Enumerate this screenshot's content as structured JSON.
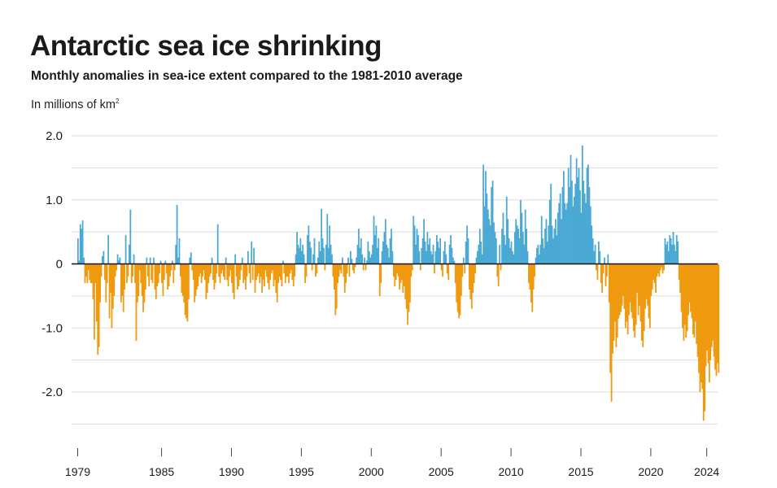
{
  "title": "Antarctic sea ice shrinking",
  "subtitle": "Monthly anomalies in sea-ice extent compared to the 1981-2010 average",
  "unit_text": "In millions of km",
  "unit_sup": "2",
  "colors": {
    "positive": "#4ba9d4",
    "negative": "#ef9a0f",
    "grid": "#dddddd",
    "zero": "#111111",
    "text": "#1a1a1a"
  },
  "chart_data": {
    "type": "bar",
    "title": "Antarctic sea ice shrinking",
    "subtitle": "Monthly anomalies in sea-ice extent compared to the 1981-2010 average",
    "ylabel": "In millions of km²",
    "ylim": [
      -2.8,
      2.0
    ],
    "yticks": [
      2.0,
      1.0,
      0,
      -1.0,
      -2.0
    ],
    "ytick_labels": [
      "2.0",
      "1.0",
      "0",
      "-1.0",
      "-2.0"
    ],
    "xticks": [
      1979,
      1985,
      1990,
      1995,
      2000,
      2005,
      2010,
      2015,
      2020,
      2024
    ],
    "xlim": [
      1979,
      2024.75
    ],
    "grid": true,
    "x_resolution": "monthly",
    "series": [
      {
        "yearly_values": {
          "1979": [
            0.4,
            0.05,
            0.62,
            0.55,
            0.68,
            0.1,
            -0.3,
            -0.2,
            -0.3,
            -0.1,
            -0.25,
            -0.3
          ],
          "1980": [
            -0.3,
            -0.55,
            -1.18,
            -0.3,
            -0.9,
            -1.42,
            -1.3,
            -0.6,
            -0.2,
            0.12,
            0.2,
            -0.25
          ],
          "1981": [
            -0.6,
            -0.3,
            0.45,
            -0.85,
            -0.45,
            -1.0,
            -0.7,
            -0.5,
            -0.2,
            -0.1,
            0.15,
            0.06
          ],
          "1982": [
            0.1,
            -0.6,
            -0.5,
            -0.75,
            -0.4,
            0.45,
            -0.3,
            -0.2,
            0.3,
            0.85,
            -0.3,
            -0.2
          ],
          "1983": [
            0.15,
            -0.3,
            -1.2,
            -0.6,
            -0.5,
            -0.1,
            -0.3,
            -0.5,
            -0.75,
            -0.6,
            -0.4,
            0.1
          ],
          "1984": [
            -0.2,
            -0.35,
            0.1,
            -0.25,
            -0.3,
            0.1,
            -0.4,
            -0.55,
            -0.35,
            -0.3,
            -0.15,
            0.05
          ],
          "1985": [
            -0.3,
            -0.5,
            -0.25,
            0.05,
            -0.15,
            -0.4,
            -0.35,
            -0.2,
            -0.1,
            0.05,
            -0.3,
            -0.1
          ],
          "1986": [
            0.3,
            0.92,
            0.1,
            0.4,
            -0.2,
            -0.45,
            -0.5,
            -0.6,
            -0.8,
            -0.85,
            -0.9,
            -0.55
          ],
          "1987": [
            0.1,
            0.18,
            -0.1,
            -0.25,
            -0.6,
            -0.5,
            -0.4,
            -0.35,
            -0.2,
            -0.15,
            -0.3,
            -0.2
          ],
          "1988": [
            -0.1,
            -0.25,
            -0.55,
            -0.45,
            -0.3,
            -0.2,
            -0.15,
            0.1,
            -0.25,
            -0.4,
            -0.3,
            -0.15
          ],
          "1989": [
            0.62,
            -0.2,
            -0.3,
            -0.15,
            -0.1,
            -0.2,
            -0.25,
            0.1,
            -0.25,
            -0.35,
            -0.2,
            -0.1
          ],
          "1990": [
            -0.3,
            -0.45,
            -0.55,
            0.15,
            -0.2,
            -0.4,
            -0.35,
            -0.25,
            -0.1,
            0.1,
            -0.3,
            -0.25
          ],
          "1991": [
            -0.4,
            -0.2,
            0.2,
            -0.15,
            -0.3,
            0.35,
            -0.25,
            0.25,
            -0.45,
            -0.25,
            -0.2,
            -0.15
          ],
          "1992": [
            -0.3,
            -0.2,
            -0.45,
            -0.25,
            -0.35,
            -0.1,
            -0.2,
            -0.3,
            -0.4,
            -0.25,
            -0.15,
            -0.1
          ],
          "1993": [
            -0.35,
            -0.25,
            -0.45,
            -0.6,
            -0.3,
            -0.2,
            -0.25,
            -0.35,
            0.05,
            -0.15,
            -0.3,
            -0.2
          ],
          "1994": [
            -0.2,
            -0.3,
            -0.15,
            -0.1,
            -0.25,
            -0.35,
            -0.2,
            0.15,
            0.5,
            0.3,
            0.25,
            0.4
          ],
          "1995": [
            0.2,
            0.3,
            0.15,
            -0.3,
            -0.2,
            0.45,
            0.6,
            0.35,
            0.25,
            -0.1,
            0.15,
            0.4
          ],
          "1996": [
            -0.2,
            -0.15,
            0.1,
            0.35,
            0.2,
            0.86,
            0.4,
            0.25,
            -0.1,
            0.3,
            0.78,
            0.25
          ],
          "1997": [
            0.6,
            0.3,
            0.15,
            -0.2,
            -0.4,
            -0.8,
            -0.7,
            -0.3,
            -0.2,
            -0.1,
            -0.15,
            0.1
          ],
          "1998": [
            -0.2,
            -0.45,
            -0.3,
            -0.15,
            0.1,
            -0.2,
            0.2,
            0.08,
            -0.1,
            -0.15,
            -0.05,
            0.1
          ],
          "1999": [
            0.3,
            0.55,
            0.25,
            0.4,
            0.15,
            -0.1,
            0.1,
            -0.1,
            0.05,
            0.35,
            0.2,
            0.1
          ],
          "2000": [
            0.15,
            0.3,
            0.75,
            0.45,
            0.6,
            0.25,
            0.4,
            -0.5,
            -0.3,
            0.2,
            0.35,
            0.5
          ],
          "2001": [
            0.7,
            0.3,
            0.25,
            0.1,
            0.4,
            0.55,
            0.2,
            -0.2,
            -0.35,
            -0.25,
            -0.15,
            -0.2
          ],
          "2002": [
            -0.4,
            -0.3,
            -0.25,
            -0.45,
            -0.35,
            -0.55,
            -0.7,
            -0.95,
            -0.75,
            -0.6,
            -0.2,
            -0.1
          ],
          "2003": [
            0.75,
            0.6,
            0.3,
            0.55,
            0.45,
            0.2,
            -0.1,
            0.25,
            0.4,
            0.7,
            0.35,
            0.2
          ],
          "2004": [
            0.5,
            0.3,
            0.4,
            0.2,
            0.15,
            0.3,
            -0.15,
            0.2,
            0.45,
            0.35,
            0.25,
            0.4
          ],
          "2005": [
            -0.1,
            -0.2,
            0.2,
            0.35,
            0.15,
            -0.15,
            -0.25,
            0.3,
            0.45,
            0.25,
            0.1,
            0.05
          ],
          "2006": [
            -0.3,
            -0.6,
            -0.75,
            -0.85,
            -0.8,
            -0.5,
            -0.2,
            0.1,
            -0.15,
            0.35,
            0.6,
            0.4
          ],
          "2007": [
            -0.4,
            -0.55,
            -0.7,
            -0.45,
            -0.3,
            -0.15,
            0.1,
            0.2,
            0.3,
            0.55,
            0.35,
            0.15
          ],
          "2008": [
            1.55,
            0.9,
            1.45,
            1.1,
            0.85,
            0.7,
            0.6,
            1.2,
            1.3,
            0.65,
            0.5,
            0.4
          ],
          "2009": [
            -0.2,
            -0.35,
            0.3,
            -0.1,
            0.55,
            0.8,
            0.45,
            0.3,
            1.05,
            0.7,
            0.4,
            0.25
          ],
          "2010": [
            0.35,
            0.2,
            0.15,
            0.5,
            0.7,
            0.6,
            0.55,
            0.4,
            1.0,
            0.8,
            0.5,
            0.3
          ],
          "2011": [
            0.85,
            0.55,
            0.2,
            -0.3,
            -0.4,
            -0.6,
            -0.75,
            -0.4,
            -0.2,
            0.1,
            0.25,
            0.3
          ],
          "2012": [
            0.15,
            0.3,
            0.75,
            0.4,
            0.25,
            0.55,
            0.7,
            0.35,
            0.6,
            1.0,
            1.25,
            0.6
          ],
          "2013": [
            0.4,
            0.55,
            0.7,
            0.45,
            0.8,
            0.95,
            1.1,
            0.7,
            1.2,
            1.45,
            0.95,
            0.85
          ],
          "2014": [
            0.95,
            1.5,
            1.2,
            1.7,
            1.3,
            0.9,
            1.05,
            1.25,
            1.65,
            1.35,
            1.5,
            1.15
          ],
          "2015": [
            0.8,
            1.85,
            1.3,
            1.1,
            0.95,
            1.5,
            1.55,
            1.2,
            0.9,
            0.6,
            0.4,
            0.2
          ],
          "2016": [
            0.3,
            -0.1,
            -0.25,
            0.35,
            0.2,
            -0.3,
            -0.45,
            -0.15,
            0.1,
            -0.35,
            -0.2,
            0.15
          ],
          "2017": [
            -0.6,
            -1.7,
            -2.15,
            -1.4,
            -1.2,
            -0.9,
            -1.3,
            -1.15,
            -0.85,
            -0.8,
            -0.75,
            -0.65
          ],
          "2018": [
            -0.5,
            -0.7,
            -1.0,
            -0.9,
            -1.1,
            -0.8,
            -0.6,
            -0.75,
            -0.85,
            -1.05,
            -1.15,
            -0.95
          ],
          "2019": [
            -0.45,
            -0.8,
            -0.65,
            -0.9,
            -1.2,
            -1.3,
            -1.05,
            -0.7,
            -0.55,
            -0.65,
            -0.85,
            -1.0
          ],
          "2020": [
            -0.5,
            -0.4,
            -0.25,
            -0.3,
            -0.45,
            -0.2,
            -0.15,
            -0.2,
            -0.1,
            -0.05,
            -0.15,
            -0.1
          ],
          "2021": [
            0.4,
            0.3,
            0.35,
            0.2,
            0.45,
            0.4,
            0.3,
            0.5,
            0.3,
            0.2,
            0.45,
            0.35
          ],
          "2022": [
            -0.25,
            -0.45,
            -0.75,
            -1.0,
            -1.2,
            -0.95,
            -1.15,
            -1.05,
            -0.8,
            -0.6,
            -0.75,
            -0.85
          ],
          "2023": [
            -1.1,
            -1.15,
            -0.9,
            -1.25,
            -1.45,
            -1.7,
            -2.0,
            -1.85,
            -1.95,
            -2.45,
            -2.3,
            -1.6
          ],
          "2024": [
            -1.35,
            -1.55,
            -1.85,
            -1.5,
            -1.3,
            -1.2,
            -1.45,
            -1.65,
            -1.75,
            -1.55,
            -1.7
          ]
        }
      }
    ]
  }
}
